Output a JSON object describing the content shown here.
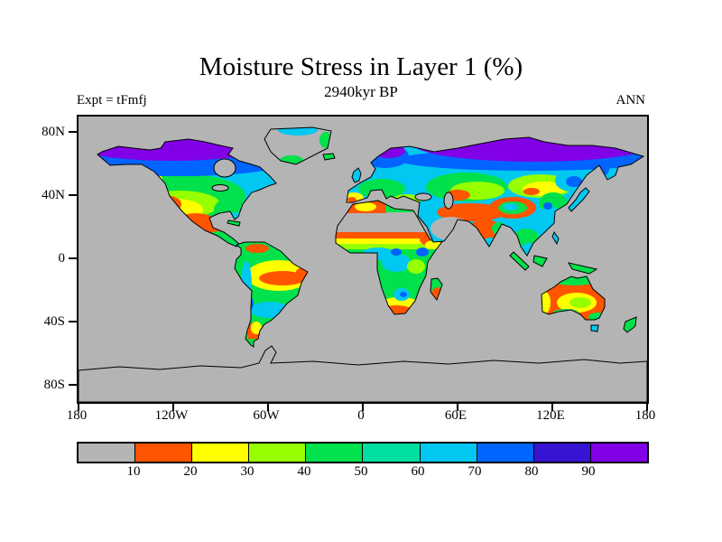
{
  "figure": {
    "title": "Moisture Stress in Layer 1 (%)",
    "subtitle": "2940kyr BP",
    "experiment_label": "Expt = tFmfj",
    "season_label": "ANN"
  },
  "axes": {
    "y_ticks": [
      "80N",
      "40N",
      "0",
      "40S",
      "80S"
    ],
    "x_ticks": [
      "180",
      "120W",
      "60W",
      "0",
      "60E",
      "120E",
      "180"
    ]
  },
  "colorbar": {
    "labels": [
      "10",
      "20",
      "30",
      "40",
      "50",
      "60",
      "70",
      "80",
      "90"
    ],
    "colors": [
      "#b4b4b4",
      "#ff5400",
      "#ffff00",
      "#96ff00",
      "#00e14b",
      "#00dfa0",
      "#00c8f0",
      "#0064ff",
      "#3714d2",
      "#8200e6"
    ],
    "units": "%"
  },
  "chart_data": {
    "type": "heatmap",
    "title": "Moisture Stress in Layer 1 (%)",
    "subtitle": "2940kyr BP",
    "experiment": "Expt = tFmfj",
    "season": "ANN",
    "projection": "equirectangular world map, filled contours over land",
    "x_axis": {
      "label": "longitude",
      "ticks": [
        "180",
        "120W",
        "60W",
        "0",
        "60E",
        "120E",
        "180"
      ],
      "range_deg": [
        -180,
        180
      ]
    },
    "y_axis": {
      "label": "latitude",
      "ticks": [
        "80N",
        "40N",
        "0",
        "40S",
        "80S"
      ],
      "range_deg": [
        -90,
        90
      ]
    },
    "legend": {
      "levels_percent": [
        10,
        20,
        30,
        40,
        50,
        60,
        70,
        80,
        90
      ],
      "colors": [
        "#b4b4b4",
        "#ff5400",
        "#ffff00",
        "#96ff00",
        "#00e14b",
        "#00dfa0",
        "#00c8f0",
        "#0064ff",
        "#3714d2",
        "#8200e6"
      ],
      "meaning": "gray <10; orange 10-20; yellow 20-30; yellow-green 30-40; green 40-50; teal-green 50-60; cyan 60-70; blue 70-80; indigo 80-90; violet >90",
      "position": "horizontal bar below map"
    },
    "regions_approx_percent": [
      {
        "region": "Oceans / no data",
        "value": "gray (<10 / masked)"
      },
      {
        "region": "Arctic North America and Siberia (>60N)",
        "value": ">90 violet grading south to 70-90 blue"
      },
      {
        "region": "Mid-latitude Canada / Russia 55-60N",
        "value": "60-80 cyan-blue band"
      },
      {
        "region": "Northern US and central Europe",
        "value": "40-60 green"
      },
      {
        "region": "Western US, Mexico, Spain",
        "value": "10-30 orange-yellow"
      },
      {
        "region": "Southeast US, Florida",
        "value": "50-70 green-cyan"
      },
      {
        "region": "Amazon interior",
        "value": "10-30 orange-yellow core in 40-50 green"
      },
      {
        "region": "Patagonia east coast",
        "value": "10-20 orange"
      },
      {
        "region": "Sahara and Arabia",
        "value": "gray (<10, masked desert)"
      },
      {
        "region": "Sahel band",
        "value": "10-40 gradient south from desert"
      },
      {
        "region": "Central equatorial Africa",
        "value": "40-70, blue spots 70-80"
      },
      {
        "region": "Southern Africa",
        "value": "40-50 green, south rim 10-30"
      },
      {
        "region": "Middle East through NW India",
        "value": "10-20 orange band"
      },
      {
        "region": "Tibetan plateau",
        "value": "orange 10-20 ring around 40-70 core"
      },
      {
        "region": "Mongolia / north China",
        "value": "20-40 yellow band"
      },
      {
        "region": "East Asia and Japan",
        "value": "50-80 green-cyan-blue"
      },
      {
        "region": "Southeast Asia / Indonesia",
        "value": "40-70 green-cyan"
      },
      {
        "region": "Australia",
        "value": "10-20 orange rim, 20-40 east interior, north coast 40-50"
      },
      {
        "region": "Greenland and Antarctica",
        "value": "gray (ice, masked)"
      }
    ]
  }
}
